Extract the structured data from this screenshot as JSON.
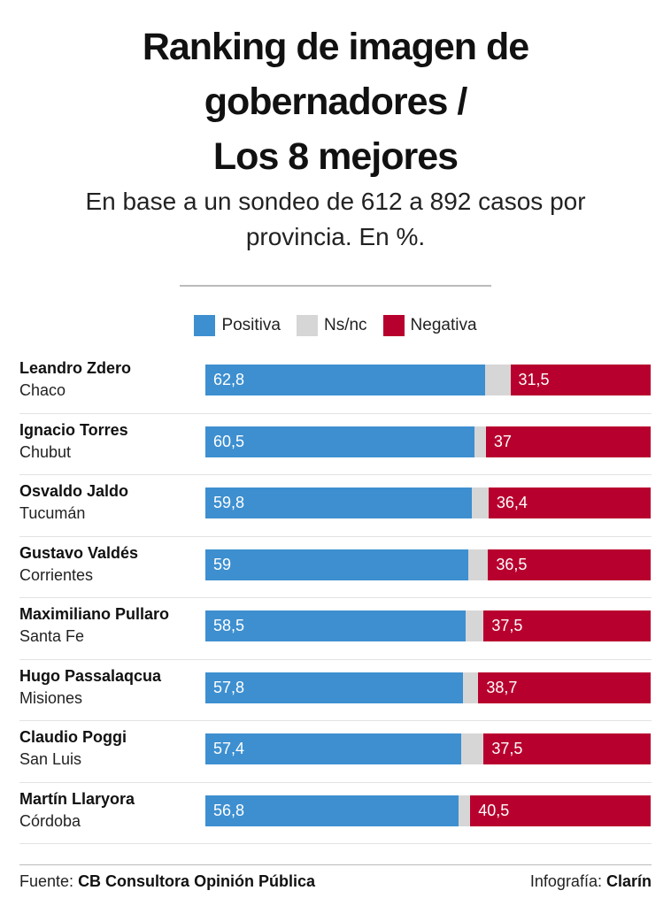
{
  "header": {
    "title_lines": [
      "Ranking de imagen de",
      "gobernadores /",
      "Los 8 mejores"
    ],
    "subtitle_lines": [
      "En base a un sondeo de 612 a 892 casos por",
      "provincia. En %."
    ]
  },
  "colors": {
    "positiva": "#3d8fd0",
    "nsnc": "#d6d6d6",
    "negativa": "#b8002e"
  },
  "chart_data": {
    "type": "bar",
    "orientation": "horizontal-stacked",
    "legend": [
      "Positiva",
      "Ns/nc",
      "Negativa"
    ],
    "legend_position": "top",
    "categories": [
      {
        "name": "Leandro Zdero",
        "province": "Chaco"
      },
      {
        "name": "Ignacio Torres",
        "province": "Chubut"
      },
      {
        "name": "Osvaldo Jaldo",
        "province": "Tucumán"
      },
      {
        "name": "Gustavo Valdés",
        "province": "Corrientes"
      },
      {
        "name": "Maximiliano Pullaro",
        "province": "Santa Fe"
      },
      {
        "name": "Hugo Passalaqcua",
        "province": "Misiones"
      },
      {
        "name": "Claudio Poggi",
        "province": "San Luis"
      },
      {
        "name": "Martín Llaryora",
        "province": "Córdoba"
      }
    ],
    "series": [
      {
        "name": "Positiva",
        "values": [
          62.8,
          60.5,
          59.8,
          59,
          58.5,
          57.8,
          57.4,
          56.8
        ],
        "labels": [
          "62,8",
          "60,5",
          "59,8",
          "59",
          "58,5",
          "57,8",
          "57,4",
          "56,8"
        ]
      },
      {
        "name": "Ns/nc",
        "values": [
          5.7,
          2.5,
          3.8,
          4.5,
          4.0,
          3.5,
          5.1,
          2.7
        ]
      },
      {
        "name": "Negativa",
        "values": [
          31.5,
          37,
          36.4,
          36.5,
          37.5,
          38.7,
          37.5,
          40.5
        ],
        "labels": [
          "31,5",
          "37",
          "36,4",
          "36,5",
          "37,5",
          "38,7",
          "37,5",
          "40,5"
        ]
      }
    ],
    "xlim": [
      0,
      100
    ]
  },
  "footer": {
    "source_prefix": "Fuente:",
    "source": "CB Consultora Opinión Pública",
    "credit_prefix": "Infografía:",
    "credit": "Clarín"
  }
}
